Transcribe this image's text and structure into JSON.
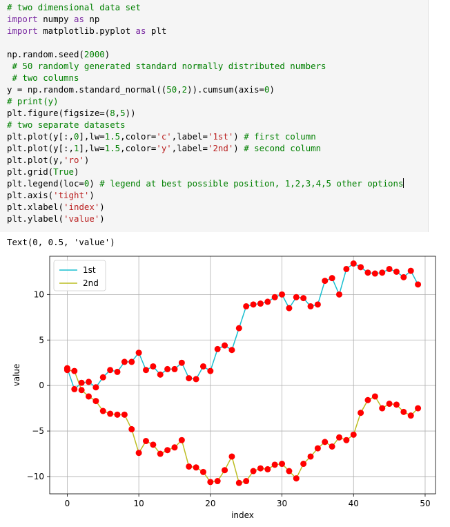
{
  "code_lines": [
    [
      {
        "t": "# two dimensional data set",
        "c": "cm"
      }
    ],
    [
      {
        "t": "import",
        "c": "kw"
      },
      {
        "t": " numpy "
      },
      {
        "t": "as",
        "c": "kw"
      },
      {
        "t": " np"
      }
    ],
    [
      {
        "t": "import",
        "c": "kw"
      },
      {
        "t": " matplotlib.pyplot "
      },
      {
        "t": "as",
        "c": "kw"
      },
      {
        "t": " plt"
      }
    ],
    [
      {
        "t": ""
      }
    ],
    [
      {
        "t": "np.random.seed("
      },
      {
        "t": "2000",
        "c": "nm"
      },
      {
        "t": ")"
      }
    ],
    [
      {
        "t": " # 50 randomly generated standard normally distributed numbers",
        "c": "cm"
      }
    ],
    [
      {
        "t": " # two columns",
        "c": "cm"
      }
    ],
    [
      {
        "t": "y = np.random.standard_normal(("
      },
      {
        "t": "50",
        "c": "nm"
      },
      {
        "t": ","
      },
      {
        "t": "2",
        "c": "nm"
      },
      {
        "t": ")).cumsum(axis="
      },
      {
        "t": "0",
        "c": "nm"
      },
      {
        "t": ")"
      }
    ],
    [
      {
        "t": "# print(y)",
        "c": "cm"
      }
    ],
    [
      {
        "t": "plt.figure(figsize=("
      },
      {
        "t": "8",
        "c": "nm"
      },
      {
        "t": ","
      },
      {
        "t": "5",
        "c": "nm"
      },
      {
        "t": "))"
      }
    ],
    [
      {
        "t": "# two separate datasets",
        "c": "cm"
      }
    ],
    [
      {
        "t": "plt.plot(y[:,"
      },
      {
        "t": "0",
        "c": "nm"
      },
      {
        "t": "],lw="
      },
      {
        "t": "1.5",
        "c": "nm"
      },
      {
        "t": ",color="
      },
      {
        "t": "'c'",
        "c": "st"
      },
      {
        "t": ",label="
      },
      {
        "t": "'1st'",
        "c": "st"
      },
      {
        "t": ") "
      },
      {
        "t": "# first column",
        "c": "cm"
      }
    ],
    [
      {
        "t": "plt.plot(y[:,"
      },
      {
        "t": "1",
        "c": "nm"
      },
      {
        "t": "],lw="
      },
      {
        "t": "1.5",
        "c": "nm"
      },
      {
        "t": ",color="
      },
      {
        "t": "'y'",
        "c": "st"
      },
      {
        "t": ",label="
      },
      {
        "t": "'2nd'",
        "c": "st"
      },
      {
        "t": ") "
      },
      {
        "t": "# second column",
        "c": "cm"
      }
    ],
    [
      {
        "t": "plt.plot(y,"
      },
      {
        "t": "'ro'",
        "c": "st"
      },
      {
        "t": ")"
      }
    ],
    [
      {
        "t": "plt.grid("
      },
      {
        "t": "True",
        "c": "nm"
      },
      {
        "t": ")"
      }
    ],
    [
      {
        "t": "plt.legend(loc="
      },
      {
        "t": "0",
        "c": "nm"
      },
      {
        "t": ") "
      },
      {
        "t": "# legend at best possible position, 1,2,3,4,5 other options",
        "c": "cm"
      },
      {
        "t": "",
        "cursor": true
      }
    ],
    [
      {
        "t": "plt.axis("
      },
      {
        "t": "'tight'",
        "c": "st"
      },
      {
        "t": ")"
      }
    ],
    [
      {
        "t": "plt.xlabel("
      },
      {
        "t": "'index'",
        "c": "st"
      },
      {
        "t": ")"
      }
    ],
    [
      {
        "t": "plt.ylabel("
      },
      {
        "t": "'value'",
        "c": "st"
      },
      {
        "t": ")"
      }
    ]
  ],
  "output_text": "Text(0, 0.5, 'value')",
  "chart_data": {
    "type": "line",
    "xlabel": "index",
    "ylabel": "value",
    "xlim": [
      -2.45,
      51.45
    ],
    "ylim": [
      -11.9,
      14.2
    ],
    "xticks": [
      0,
      10,
      20,
      30,
      40,
      50
    ],
    "yticks": [
      -10,
      -5,
      0,
      5,
      10
    ],
    "grid": true,
    "legend_position": "top-left",
    "marker_color": "#ff0000",
    "series": [
      {
        "name": "1st",
        "color": "#17becf",
        "values": [
          1.9,
          -0.4,
          0.3,
          0.4,
          -0.2,
          0.9,
          1.7,
          1.5,
          2.6,
          2.6,
          3.6,
          1.7,
          2.1,
          1.2,
          1.8,
          1.8,
          2.5,
          0.8,
          0.7,
          2.1,
          1.6,
          4.0,
          4.4,
          3.9,
          6.3,
          8.7,
          8.9,
          9.0,
          9.2,
          9.7,
          10.0,
          8.5,
          9.7,
          9.6,
          8.7,
          8.9,
          11.5,
          11.8,
          10.0,
          12.8,
          13.4,
          13.0,
          12.4,
          12.3,
          12.4,
          12.8,
          12.5,
          11.9,
          12.6,
          11.1
        ]
      },
      {
        "name": "2nd",
        "color": "#bcbd22",
        "values": [
          1.7,
          1.6,
          -0.5,
          -1.2,
          -1.7,
          -2.8,
          -3.1,
          -3.2,
          -3.2,
          -4.8,
          -7.4,
          -6.1,
          -6.5,
          -7.5,
          -7.1,
          -6.8,
          -6.0,
          -8.9,
          -9.0,
          -9.5,
          -10.6,
          -10.5,
          -9.3,
          -7.8,
          -10.7,
          -10.5,
          -9.4,
          -9.1,
          -9.2,
          -8.7,
          -8.6,
          -9.4,
          -10.2,
          -8.6,
          -7.8,
          -6.9,
          -6.2,
          -6.7,
          -5.7,
          -6.0,
          -5.4,
          -3.0,
          -1.6,
          -1.2,
          -2.5,
          -2.0,
          -2.1,
          -2.9,
          -3.3,
          -2.5
        ]
      }
    ]
  }
}
